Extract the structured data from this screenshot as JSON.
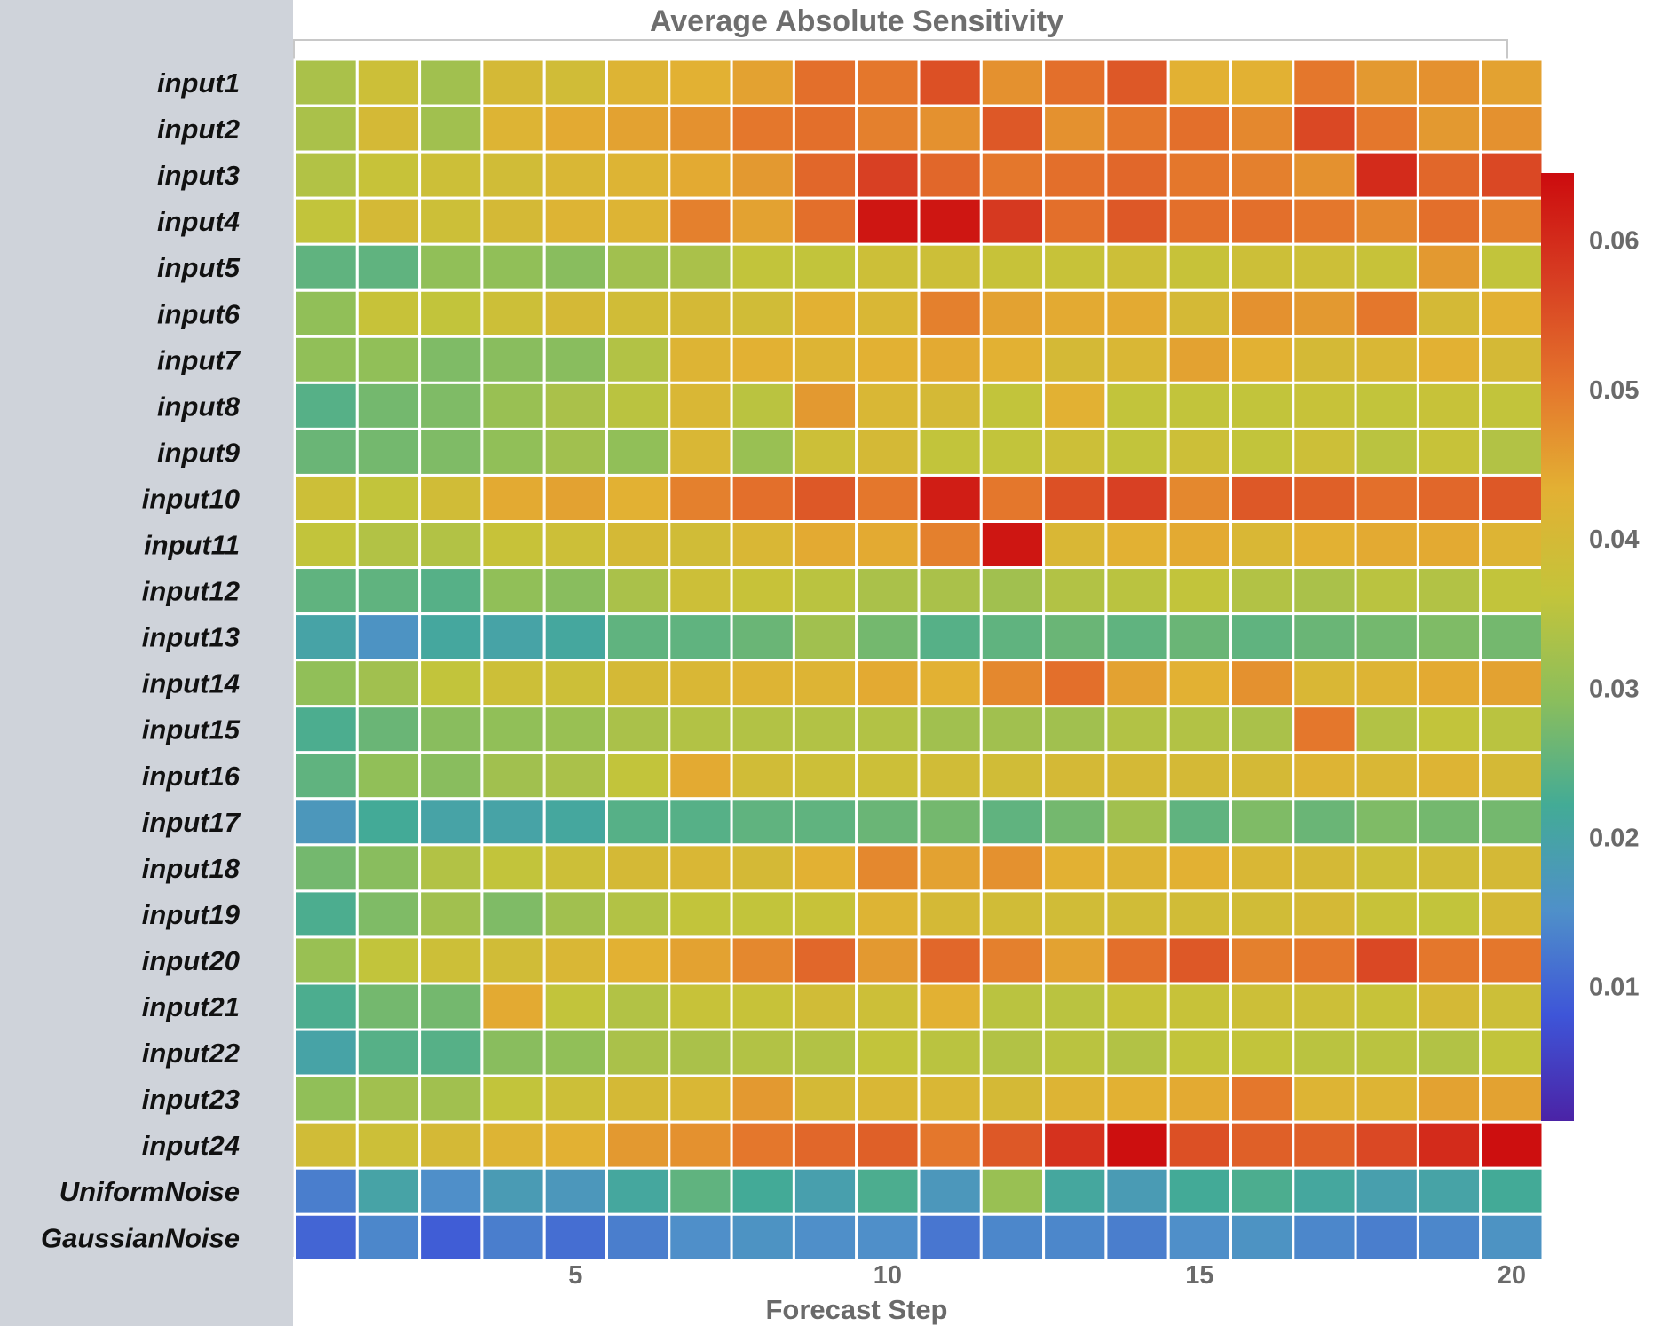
{
  "chart_data": {
    "type": "heatmap",
    "title": "Average Absolute Sensitivity",
    "xlabel": "Forecast Step",
    "ylabel": "",
    "x_steps": [
      1,
      2,
      3,
      4,
      5,
      6,
      7,
      8,
      9,
      10,
      11,
      12,
      13,
      14,
      15,
      16,
      17,
      18,
      19,
      20
    ],
    "x_ticks": [
      5,
      10,
      15,
      20
    ],
    "rows": [
      "input1",
      "input2",
      "input3",
      "input4",
      "input5",
      "input6",
      "input7",
      "input8",
      "input9",
      "input10",
      "input11",
      "input12",
      "input13",
      "input14",
      "input15",
      "input16",
      "input17",
      "input18",
      "input19",
      "input20",
      "input21",
      "input22",
      "input23",
      "input24",
      "UniformNoise",
      "GaussianNoise"
    ],
    "values": [
      [
        0.033,
        0.038,
        0.032,
        0.04,
        0.039,
        0.042,
        0.043,
        0.045,
        0.051,
        0.05,
        0.055,
        0.047,
        0.051,
        0.054,
        0.043,
        0.043,
        0.05,
        0.046,
        0.047,
        0.045
      ],
      [
        0.033,
        0.04,
        0.032,
        0.042,
        0.044,
        0.045,
        0.047,
        0.05,
        0.051,
        0.049,
        0.047,
        0.054,
        0.047,
        0.05,
        0.051,
        0.048,
        0.056,
        0.05,
        0.046,
        0.047
      ],
      [
        0.034,
        0.037,
        0.038,
        0.039,
        0.041,
        0.042,
        0.044,
        0.046,
        0.052,
        0.057,
        0.052,
        0.05,
        0.051,
        0.052,
        0.05,
        0.049,
        0.047,
        0.06,
        0.052,
        0.056
      ],
      [
        0.036,
        0.04,
        0.038,
        0.04,
        0.042,
        0.042,
        0.049,
        0.045,
        0.051,
        0.063,
        0.063,
        0.058,
        0.051,
        0.054,
        0.051,
        0.051,
        0.05,
        0.048,
        0.051,
        0.049
      ],
      [
        0.025,
        0.025,
        0.03,
        0.03,
        0.029,
        0.032,
        0.033,
        0.036,
        0.036,
        0.038,
        0.038,
        0.037,
        0.037,
        0.038,
        0.037,
        0.038,
        0.038,
        0.037,
        0.046,
        0.036
      ],
      [
        0.03,
        0.037,
        0.036,
        0.038,
        0.04,
        0.039,
        0.04,
        0.039,
        0.043,
        0.041,
        0.049,
        0.045,
        0.044,
        0.044,
        0.04,
        0.047,
        0.046,
        0.05,
        0.04,
        0.043
      ],
      [
        0.03,
        0.03,
        0.028,
        0.029,
        0.029,
        0.034,
        0.042,
        0.043,
        0.042,
        0.043,
        0.044,
        0.043,
        0.04,
        0.041,
        0.045,
        0.043,
        0.04,
        0.041,
        0.043,
        0.04
      ],
      [
        0.024,
        0.027,
        0.028,
        0.031,
        0.033,
        0.035,
        0.041,
        0.035,
        0.046,
        0.041,
        0.04,
        0.036,
        0.043,
        0.036,
        0.036,
        0.036,
        0.037,
        0.036,
        0.037,
        0.036
      ],
      [
        0.026,
        0.027,
        0.028,
        0.03,
        0.032,
        0.03,
        0.041,
        0.031,
        0.038,
        0.04,
        0.036,
        0.036,
        0.038,
        0.036,
        0.038,
        0.036,
        0.038,
        0.035,
        0.037,
        0.034
      ],
      [
        0.038,
        0.036,
        0.039,
        0.044,
        0.045,
        0.043,
        0.049,
        0.051,
        0.054,
        0.05,
        0.062,
        0.05,
        0.055,
        0.057,
        0.048,
        0.054,
        0.053,
        0.051,
        0.052,
        0.054
      ],
      [
        0.036,
        0.034,
        0.034,
        0.037,
        0.038,
        0.04,
        0.039,
        0.041,
        0.044,
        0.044,
        0.049,
        0.063,
        0.041,
        0.043,
        0.044,
        0.041,
        0.043,
        0.044,
        0.044,
        0.042
      ],
      [
        0.025,
        0.025,
        0.024,
        0.03,
        0.029,
        0.033,
        0.038,
        0.037,
        0.035,
        0.033,
        0.033,
        0.032,
        0.034,
        0.035,
        0.036,
        0.034,
        0.033,
        0.035,
        0.034,
        0.036
      ],
      [
        0.02,
        0.016,
        0.021,
        0.02,
        0.021,
        0.025,
        0.025,
        0.026,
        0.032,
        0.027,
        0.024,
        0.025,
        0.026,
        0.025,
        0.026,
        0.025,
        0.026,
        0.027,
        0.028,
        0.027
      ],
      [
        0.03,
        0.032,
        0.036,
        0.038,
        0.038,
        0.04,
        0.041,
        0.042,
        0.042,
        0.044,
        0.043,
        0.048,
        0.051,
        0.045,
        0.043,
        0.047,
        0.041,
        0.042,
        0.044,
        0.045
      ],
      [
        0.023,
        0.026,
        0.029,
        0.03,
        0.031,
        0.033,
        0.034,
        0.034,
        0.034,
        0.034,
        0.032,
        0.032,
        0.032,
        0.034,
        0.034,
        0.033,
        0.05,
        0.034,
        0.036,
        0.035
      ],
      [
        0.025,
        0.03,
        0.029,
        0.032,
        0.033,
        0.036,
        0.044,
        0.039,
        0.038,
        0.038,
        0.039,
        0.039,
        0.04,
        0.04,
        0.04,
        0.04,
        0.042,
        0.041,
        0.042,
        0.04
      ],
      [
        0.017,
        0.022,
        0.02,
        0.02,
        0.021,
        0.024,
        0.024,
        0.025,
        0.025,
        0.026,
        0.027,
        0.025,
        0.027,
        0.032,
        0.025,
        0.028,
        0.026,
        0.028,
        0.027,
        0.027
      ],
      [
        0.027,
        0.029,
        0.034,
        0.036,
        0.038,
        0.04,
        0.041,
        0.04,
        0.043,
        0.048,
        0.045,
        0.047,
        0.043,
        0.042,
        0.043,
        0.041,
        0.04,
        0.038,
        0.039,
        0.04
      ],
      [
        0.023,
        0.028,
        0.032,
        0.028,
        0.032,
        0.034,
        0.036,
        0.036,
        0.037,
        0.042,
        0.04,
        0.039,
        0.039,
        0.039,
        0.039,
        0.039,
        0.04,
        0.037,
        0.036,
        0.04
      ],
      [
        0.031,
        0.036,
        0.038,
        0.039,
        0.041,
        0.043,
        0.045,
        0.048,
        0.052,
        0.046,
        0.052,
        0.049,
        0.045,
        0.051,
        0.054,
        0.049,
        0.05,
        0.056,
        0.05,
        0.05
      ],
      [
        0.023,
        0.027,
        0.027,
        0.044,
        0.036,
        0.034,
        0.037,
        0.037,
        0.039,
        0.038,
        0.043,
        0.035,
        0.035,
        0.037,
        0.037,
        0.038,
        0.038,
        0.037,
        0.04,
        0.038
      ],
      [
        0.02,
        0.024,
        0.024,
        0.029,
        0.03,
        0.033,
        0.033,
        0.034,
        0.034,
        0.036,
        0.035,
        0.034,
        0.035,
        0.034,
        0.036,
        0.036,
        0.035,
        0.035,
        0.034,
        0.036
      ],
      [
        0.03,
        0.032,
        0.032,
        0.036,
        0.038,
        0.04,
        0.041,
        0.046,
        0.04,
        0.041,
        0.041,
        0.04,
        0.042,
        0.043,
        0.044,
        0.05,
        0.042,
        0.042,
        0.045,
        0.045
      ],
      [
        0.039,
        0.038,
        0.04,
        0.042,
        0.043,
        0.046,
        0.047,
        0.05,
        0.052,
        0.053,
        0.05,
        0.054,
        0.059,
        0.064,
        0.055,
        0.053,
        0.053,
        0.056,
        0.06,
        0.064
      ],
      [
        0.013,
        0.02,
        0.015,
        0.018,
        0.017,
        0.021,
        0.025,
        0.022,
        0.019,
        0.023,
        0.017,
        0.031,
        0.021,
        0.018,
        0.022,
        0.023,
        0.021,
        0.019,
        0.02,
        0.022
      ],
      [
        0.01,
        0.014,
        0.009,
        0.013,
        0.011,
        0.013,
        0.015,
        0.016,
        0.015,
        0.015,
        0.012,
        0.014,
        0.014,
        0.013,
        0.015,
        0.016,
        0.014,
        0.013,
        0.014,
        0.016
      ]
    ],
    "colorbar": {
      "ticks": [
        "0.06",
        "0.05",
        "0.04",
        "0.03",
        "0.02",
        "0.01"
      ]
    },
    "grid": false,
    "legend": "right"
  },
  "colors": {
    "scale": [
      "#4b23a6",
      "#3e55d8",
      "#4f90c9",
      "#43ab96",
      "#8bbe5c",
      "#c4c43a",
      "#e3b033",
      "#e4742c",
      "#d73d22",
      "#cc0b0e"
    ]
  }
}
